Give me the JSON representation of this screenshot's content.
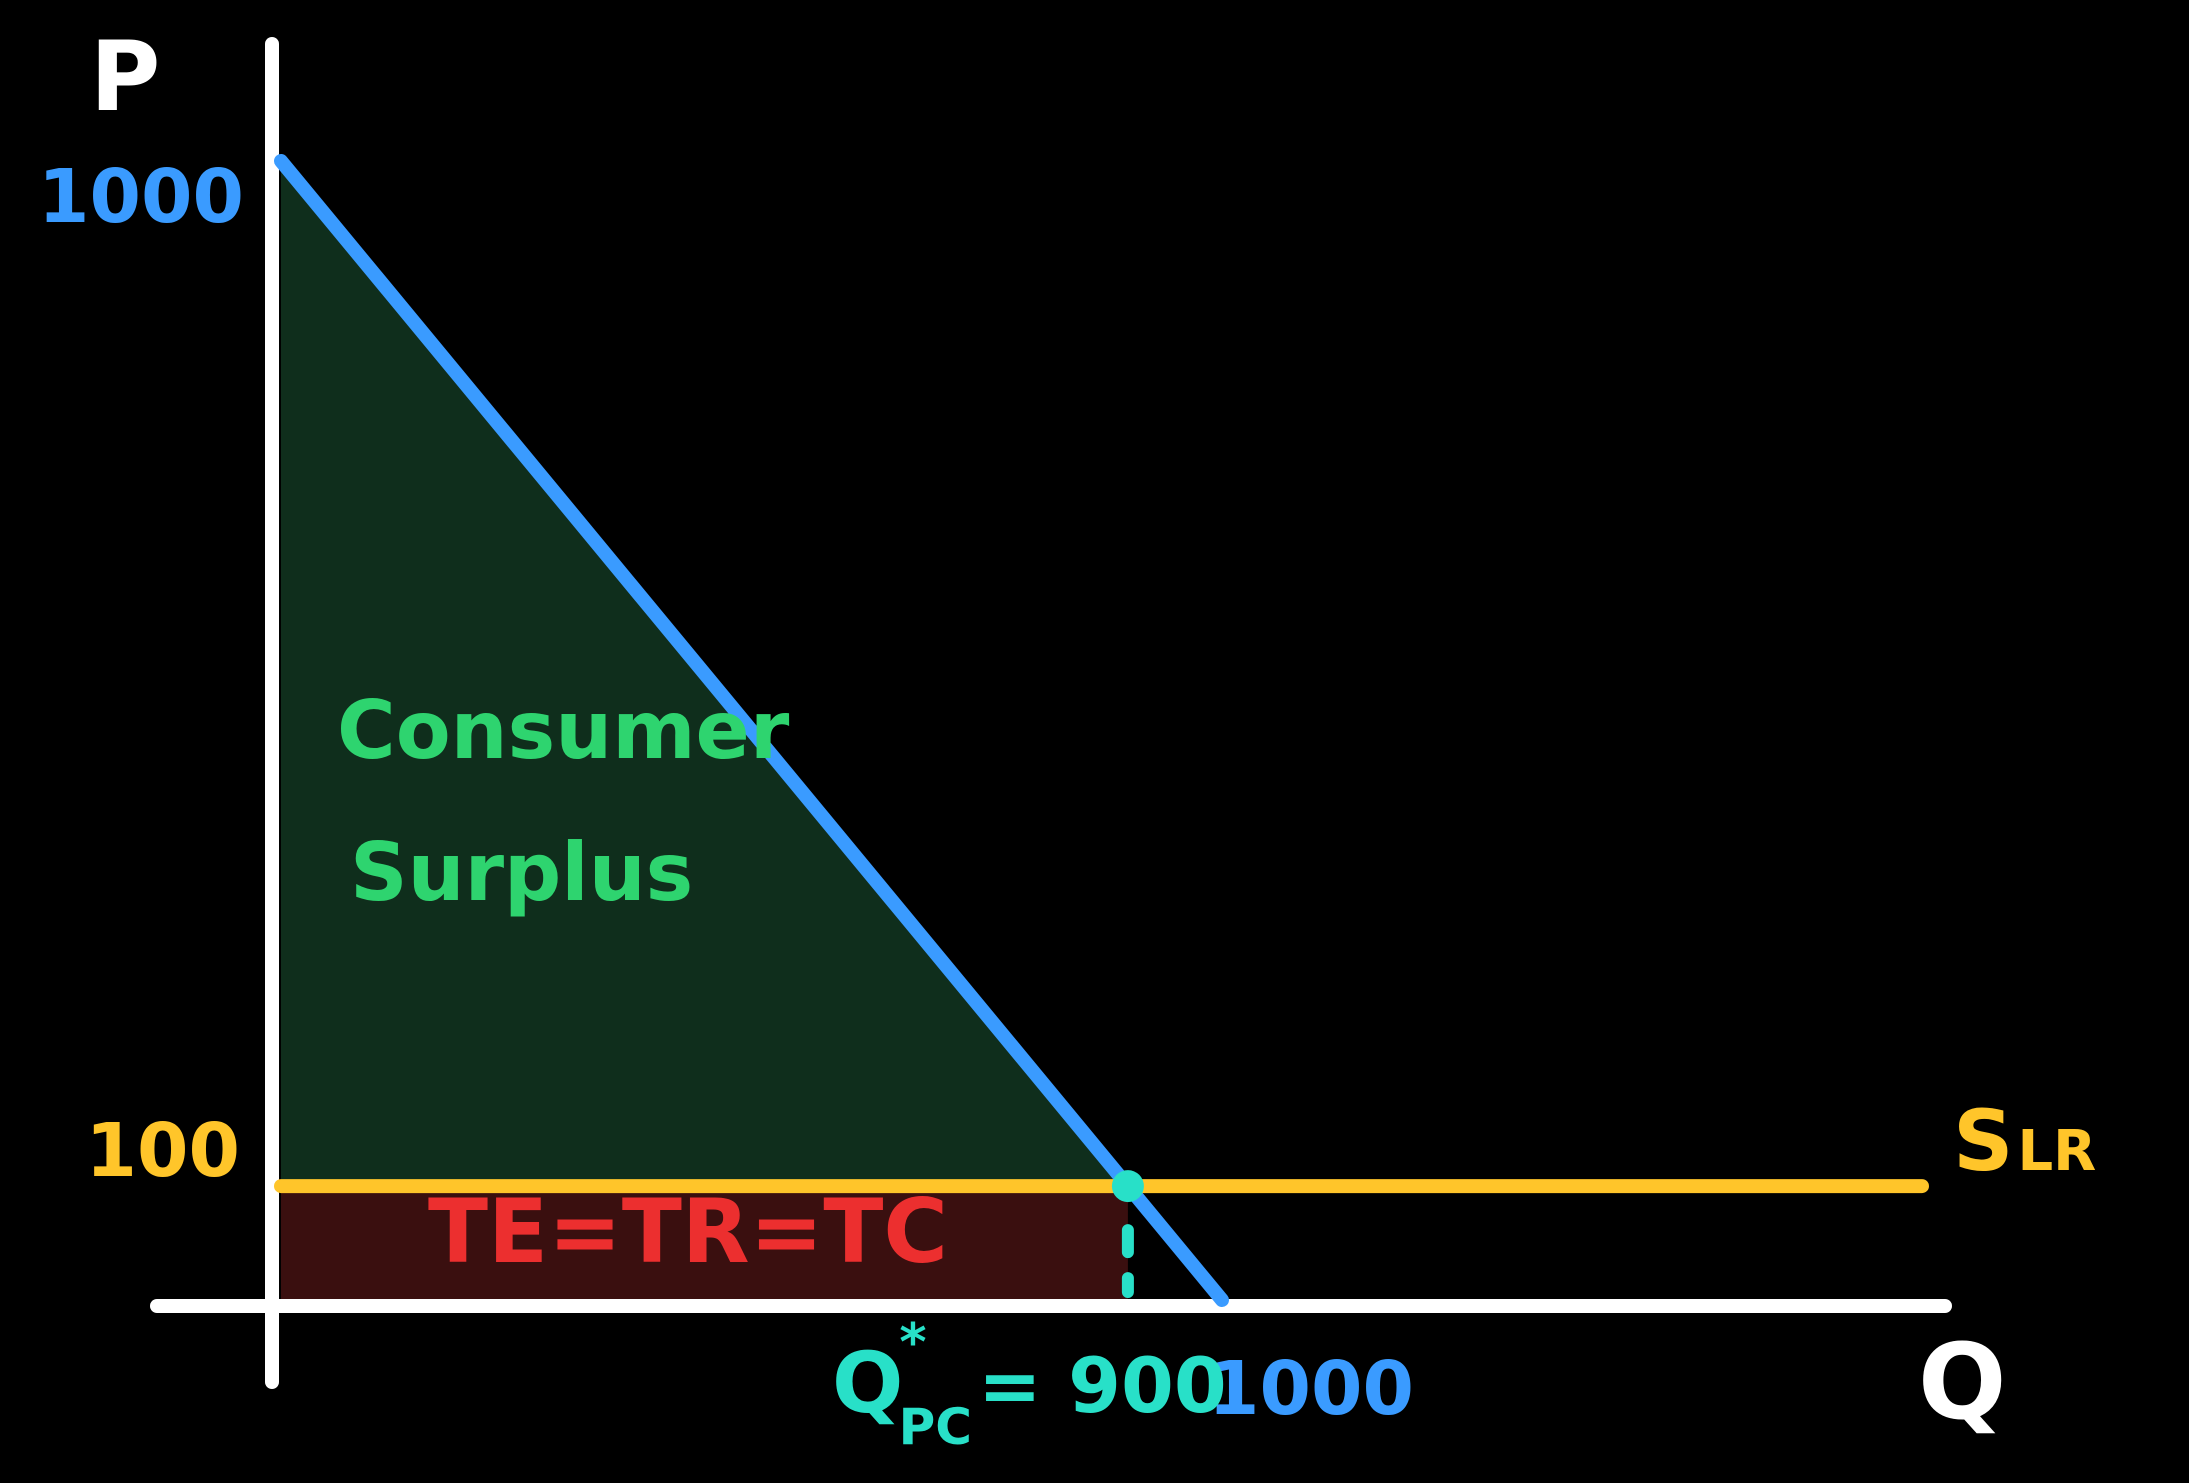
{
  "chart_data": {
    "type": "line",
    "title": "",
    "xlabel": "Q",
    "ylabel": "P",
    "xlim": [
      0,
      1200
    ],
    "ylim": [
      0,
      1100
    ],
    "grid": false,
    "series": [
      {
        "name": "",
        "kind": "demand",
        "x": [
          0,
          1000
        ],
        "y": [
          1000,
          0
        ],
        "color": "#3a9bff"
      },
      {
        "name": "S",
        "subscript": "LR",
        "kind": "supply",
        "x": [
          0,
          1200
        ],
        "y": [
          100,
          100
        ],
        "color": "#ffc52a"
      }
    ],
    "equilibrium": {
      "x": 900,
      "y": 100,
      "color": "#28e0c8"
    },
    "areas": [
      {
        "label": "",
        "fill": "#0f2e1c",
        "vertices": [
          [
            0,
            1000
          ],
          [
            0,
            100
          ],
          [
            900,
            100
          ]
        ]
      },
      {
        "label": "",
        "fill": "#3a0f0f",
        "vertices": [
          [
            0,
            100
          ],
          [
            0,
            0
          ],
          [
            900,
            0
          ],
          [
            900,
            100
          ]
        ]
      }
    ],
    "annotations": {
      "consumer_surplus_line1": "Consumer",
      "consumer_surplus_line2": "Surplus",
      "consumer_surplus_color": "#2ed46f",
      "total_label": "TE=TR=TC",
      "total_label_color": "#ec2f2f",
      "q_star_label": "Q",
      "q_star_sup": "*",
      "q_star_sub": "PC",
      "q_star_value": "= 900"
    },
    "ticks": {
      "y": [
        {
          "value": 1000,
          "label": "1000",
          "color": "#3a9bff"
        },
        {
          "value": 100,
          "label": "100",
          "color": "#ffc52a"
        }
      ],
      "x": [
        {
          "value": 1000,
          "label": "1000",
          "color": "#3a9bff"
        }
      ]
    },
    "axis_color": "#ffffff"
  }
}
